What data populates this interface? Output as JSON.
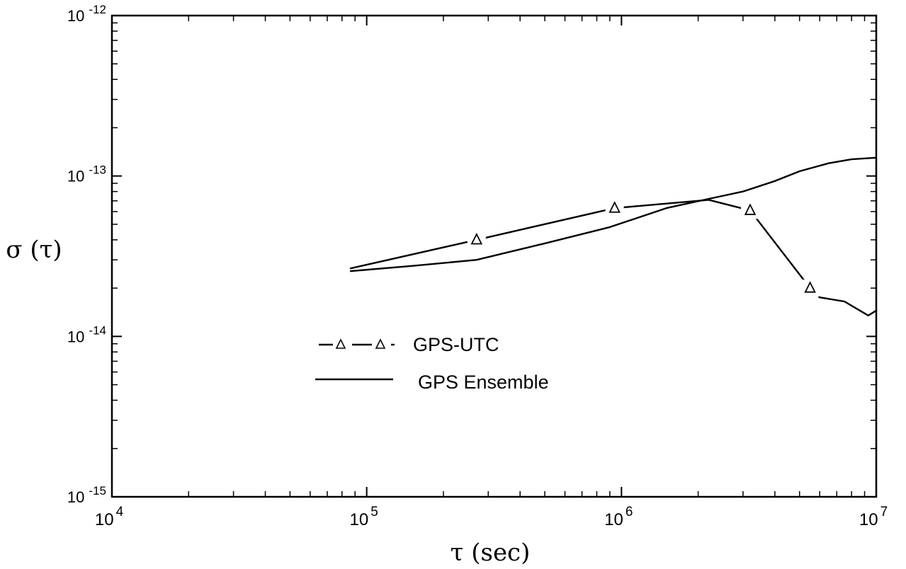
{
  "chart_data": {
    "type": "line",
    "title": "",
    "xlabel": "τ (sec)",
    "ylabel": "σ (τ)",
    "xscale": "log",
    "yscale": "log",
    "xlim": [
      10000,
      10000000
    ],
    "ylim": [
      1e-15,
      1e-12
    ],
    "grid": false,
    "legend_position": "lower-left",
    "x_ticks": [
      {
        "value": 10000,
        "base": "10",
        "exp": "4"
      },
      {
        "value": 100000,
        "base": "10",
        "exp": "5"
      },
      {
        "value": 1000000,
        "base": "10",
        "exp": "6"
      },
      {
        "value": 10000000,
        "base": "10",
        "exp": "7"
      }
    ],
    "y_ticks": [
      {
        "value": 1e-12,
        "base": "10",
        "exp": "-12"
      },
      {
        "value": 1e-13,
        "base": "10",
        "exp": "-13"
      },
      {
        "value": 1e-14,
        "base": "10",
        "exp": "-14"
      },
      {
        "value": 1e-15,
        "base": "10",
        "exp": "-15"
      }
    ],
    "series": [
      {
        "name": "GPS-UTC",
        "style": "dashed-with-triangles",
        "color": "#000000",
        "x": [
          86000,
          270000,
          940000,
          2200000,
          3200000,
          5500000,
          6000000,
          7500000,
          9300000,
          10000000
        ],
        "y": [
          2.65e-14,
          4e-14,
          6.3e-14,
          7.1e-14,
          6.1e-14,
          2e-14,
          1.75e-14,
          1.65e-14,
          1.35e-14,
          1.45e-14
        ],
        "markers_x": [
          270000,
          940000,
          3200000,
          5500000
        ]
      },
      {
        "name": "GPS Ensemble",
        "style": "solid",
        "color": "#000000",
        "x": [
          86000,
          150000,
          270000,
          500000,
          900000,
          1500000,
          2200000,
          3000000,
          4000000,
          5000000,
          6500000,
          8000000,
          10000000
        ],
        "y": [
          2.55e-14,
          2.75e-14,
          3e-14,
          3.8e-14,
          4.8e-14,
          6.3e-14,
          7.2e-14,
          8e-14,
          9.3e-14,
          1.07e-13,
          1.2e-13,
          1.27e-13,
          1.3e-13
        ]
      }
    ]
  }
}
